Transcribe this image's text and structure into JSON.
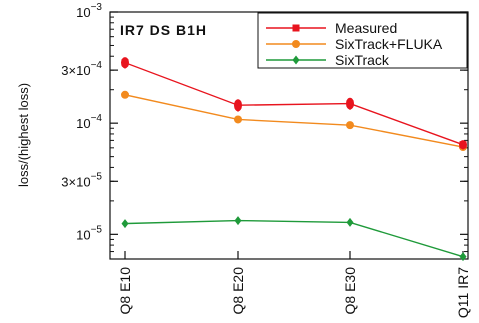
{
  "chart_data": {
    "type": "line",
    "title": "IR7 DS B1H",
    "xlabel": "",
    "ylabel": "loss/(highest loss)",
    "yscale": "log",
    "ylim": [
      6e-06,
      0.001
    ],
    "categories": [
      "Q8 E10",
      "Q8 E20",
      "Q8 E30",
      "Q11 IR7"
    ],
    "y_ticks": [
      {
        "value": 0.001,
        "mantissa": "",
        "base": "10",
        "exp": "−3"
      },
      {
        "value": 0.0003,
        "mantissa": "3×",
        "base": "10",
        "exp": "−4"
      },
      {
        "value": 0.0001,
        "mantissa": "",
        "base": "10",
        "exp": "−4"
      },
      {
        "value": 3e-05,
        "mantissa": "3×",
        "base": "10",
        "exp": "−5"
      },
      {
        "value": 1e-05,
        "mantissa": "",
        "base": "10",
        "exp": "−5"
      }
    ],
    "legend_position": "top-right",
    "grid": false,
    "series": [
      {
        "name": "Measured",
        "color": "#e8141e",
        "marker": "square",
        "error_bars": true,
        "values": [
          0.00035,
          0.000145,
          0.00015,
          6.4e-05
        ],
        "errors": [
          4e-05,
          1.8e-05,
          1.8e-05,
          6e-06
        ]
      },
      {
        "name": "SixTrack+FLUKA",
        "color": "#f28a1e",
        "marker": "circle",
        "error_bars": false,
        "values": [
          0.00018,
          0.000108,
          9.6e-05,
          6.1e-05
        ]
      },
      {
        "name": "SixTrack",
        "color": "#1f9a3a",
        "marker": "diamond",
        "error_bars": false,
        "values": [
          1.25e-05,
          1.33e-05,
          1.28e-05,
          6.3e-06
        ]
      }
    ]
  }
}
